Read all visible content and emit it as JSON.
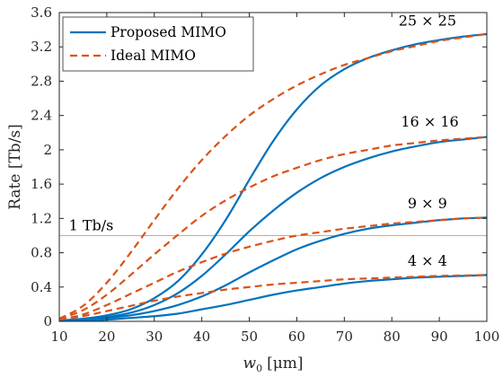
{
  "chart_data": {
    "type": "line",
    "xlabel_base": "w",
    "xlabel_sub": "0",
    "xlabel_unit": "[μm]",
    "ylabel": "Rate [Tb/s]",
    "xlim": [
      10,
      100
    ],
    "ylim": [
      0,
      3.6
    ],
    "xticks": [
      "10",
      "20",
      "30",
      "40",
      "50",
      "60",
      "70",
      "80",
      "90",
      "100"
    ],
    "yticks": [
      "0",
      "0.4",
      "0.8",
      "1.2",
      "1.6",
      "2",
      "2.4",
      "2.8",
      "3.2",
      "3.6"
    ],
    "grid": false,
    "legend_position": "top-left",
    "legend": {
      "proposed": "Proposed MIMO",
      "ideal": "Ideal MIMO"
    },
    "colors": {
      "proposed": "#0072BD",
      "ideal": "#D95319",
      "threshold": "#C9A98D",
      "axis": "#262626"
    },
    "threshold": {
      "value": 1.0,
      "label": "1 Tb/s"
    },
    "x": [
      10,
      15,
      20,
      25,
      30,
      35,
      40,
      45,
      50,
      55,
      60,
      65,
      70,
      75,
      80,
      85,
      90,
      95,
      100
    ],
    "series": [
      {
        "group": "25 × 25",
        "kind": "proposed",
        "values": [
          0.01,
          0.03,
          0.07,
          0.14,
          0.27,
          0.47,
          0.78,
          1.18,
          1.65,
          2.1,
          2.47,
          2.75,
          2.94,
          3.07,
          3.16,
          3.23,
          3.28,
          3.32,
          3.35
        ]
      },
      {
        "group": "25 × 25",
        "kind": "ideal",
        "values": [
          0.03,
          0.18,
          0.45,
          0.8,
          1.18,
          1.55,
          1.88,
          2.16,
          2.4,
          2.59,
          2.75,
          2.88,
          2.99,
          3.07,
          3.15,
          3.21,
          3.27,
          3.31,
          3.35
        ]
      },
      {
        "group": "16 × 16",
        "kind": "proposed",
        "values": [
          0.01,
          0.02,
          0.05,
          0.1,
          0.19,
          0.33,
          0.53,
          0.78,
          1.05,
          1.29,
          1.5,
          1.67,
          1.8,
          1.9,
          1.98,
          2.04,
          2.09,
          2.12,
          2.15
        ]
      },
      {
        "group": "16 × 16",
        "kind": "ideal",
        "values": [
          0.03,
          0.13,
          0.31,
          0.54,
          0.78,
          1.01,
          1.23,
          1.41,
          1.56,
          1.69,
          1.79,
          1.88,
          1.95,
          2.0,
          2.05,
          2.08,
          2.11,
          2.13,
          2.15
        ]
      },
      {
        "group": "9 × 9",
        "kind": "proposed",
        "values": [
          0.01,
          0.02,
          0.04,
          0.07,
          0.12,
          0.19,
          0.29,
          0.42,
          0.57,
          0.71,
          0.84,
          0.94,
          1.02,
          1.08,
          1.12,
          1.15,
          1.18,
          1.2,
          1.21
        ]
      },
      {
        "group": "9 × 9",
        "kind": "ideal",
        "values": [
          0.02,
          0.08,
          0.19,
          0.32,
          0.45,
          0.58,
          0.69,
          0.79,
          0.87,
          0.94,
          1.0,
          1.04,
          1.08,
          1.11,
          1.14,
          1.16,
          1.18,
          1.2,
          1.21
        ]
      },
      {
        "group": "4 × 4",
        "kind": "proposed",
        "values": [
          0.005,
          0.01,
          0.02,
          0.04,
          0.06,
          0.09,
          0.14,
          0.19,
          0.25,
          0.31,
          0.36,
          0.4,
          0.44,
          0.47,
          0.49,
          0.51,
          0.52,
          0.53,
          0.54
        ]
      },
      {
        "group": "4 × 4",
        "kind": "ideal",
        "values": [
          0.02,
          0.06,
          0.12,
          0.18,
          0.24,
          0.29,
          0.33,
          0.37,
          0.4,
          0.43,
          0.45,
          0.47,
          0.49,
          0.5,
          0.51,
          0.52,
          0.53,
          0.535,
          0.54
        ]
      }
    ],
    "annotations": [
      {
        "text": "25 × 25",
        "x": 87.5,
        "y": 3.45
      },
      {
        "text": "16 × 16",
        "x": 88,
        "y": 2.27
      },
      {
        "text": "9 × 9",
        "x": 87.5,
        "y": 1.32
      },
      {
        "text": "4 × 4",
        "x": 87.5,
        "y": 0.65
      }
    ]
  }
}
